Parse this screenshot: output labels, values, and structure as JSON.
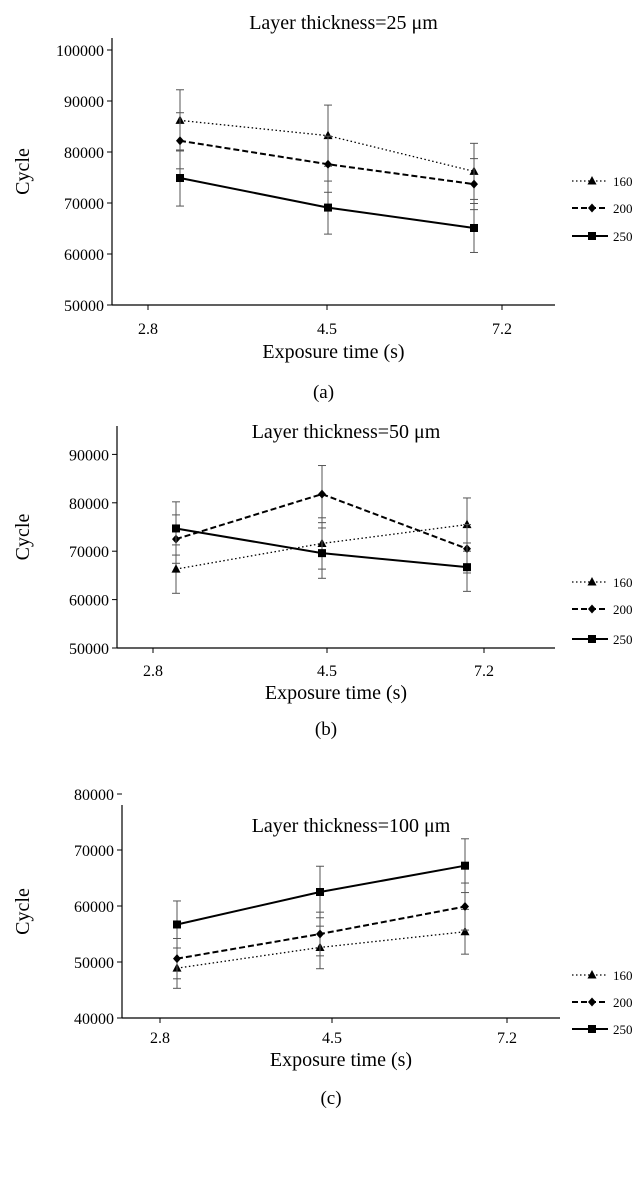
{
  "chart_data": [
    {
      "type": "line",
      "title": "Layer thickness=25 μm",
      "caption": "(a)",
      "xlabel": "Exposure time (s)",
      "ylabel": "Cycle",
      "x_ticks": [
        "2.8",
        "4.5",
        "7.2"
      ],
      "y_ticks": [
        "50000",
        "60000",
        "70000",
        "80000",
        "90000",
        "100000"
      ],
      "ylim": [
        50000,
        100000
      ],
      "grid": false,
      "legend_position": "right",
      "categories": [
        "3.0",
        "4.5",
        "6.8"
      ],
      "series": [
        {
          "name": "160",
          "style": "dotted",
          "marker": "triangle",
          "values": [
            86200,
            83200,
            76200
          ],
          "err": [
            6000,
            6000,
            5500
          ]
        },
        {
          "name": "200",
          "style": "dashed",
          "marker": "diamond",
          "values": [
            82200,
            77600,
            73700
          ],
          "err": [
            5500,
            5500,
            5000
          ]
        },
        {
          "name": "250",
          "style": "solid",
          "marker": "square",
          "values": [
            74900,
            69100,
            65100
          ],
          "err": [
            5500,
            5200,
            4800
          ]
        }
      ]
    },
    {
      "type": "line",
      "title": "Layer thickness=50 μm",
      "caption": "(b)",
      "xlabel": "Exposure time (s)",
      "ylabel": "Cycle",
      "x_ticks": [
        "2.8",
        "4.5",
        "7.2"
      ],
      "y_ticks": [
        "50000",
        "60000",
        "70000",
        "80000",
        "90000"
      ],
      "ylim": [
        50000,
        100000
      ],
      "grid": false,
      "legend_position": "right",
      "categories": [
        "3.0",
        "4.5",
        "6.8"
      ],
      "series": [
        {
          "name": "160",
          "style": "dotted",
          "marker": "triangle",
          "values": [
            66300,
            71600,
            75500
          ],
          "err": [
            5000,
            5300,
            5500
          ]
        },
        {
          "name": "200",
          "style": "dashed",
          "marker": "diamond",
          "values": [
            72500,
            81800,
            70500
          ],
          "err": [
            5000,
            5900,
            5000
          ]
        },
        {
          "name": "250",
          "style": "solid",
          "marker": "square",
          "values": [
            74700,
            69600,
            66700
          ],
          "err": [
            5500,
            5200,
            5000
          ]
        }
      ]
    },
    {
      "type": "line",
      "title": "Layer thickness=100 μm",
      "caption": "(c)",
      "xlabel": "Exposure time (s)",
      "ylabel": "Cycle",
      "x_ticks": [
        "2.8",
        "4.5",
        "7.2"
      ],
      "y_ticks": [
        "40000",
        "50000",
        "60000",
        "70000",
        "80000"
      ],
      "ylim": [
        40000,
        85000
      ],
      "grid": false,
      "legend_position": "right",
      "categories": [
        "3.0",
        "4.5",
        "6.8"
      ],
      "series": [
        {
          "name": "160",
          "style": "dotted",
          "marker": "triangle",
          "values": [
            48900,
            52600,
            55400
          ],
          "err": [
            3600,
            3800,
            4000
          ]
        },
        {
          "name": "200",
          "style": "dashed",
          "marker": "diamond",
          "values": [
            50600,
            55000,
            59900
          ],
          "err": [
            3600,
            3900,
            4200
          ]
        },
        {
          "name": "250",
          "style": "solid",
          "marker": "square",
          "values": [
            56700,
            62500,
            67200
          ],
          "err": [
            4200,
            4600,
            4800
          ]
        }
      ]
    }
  ]
}
